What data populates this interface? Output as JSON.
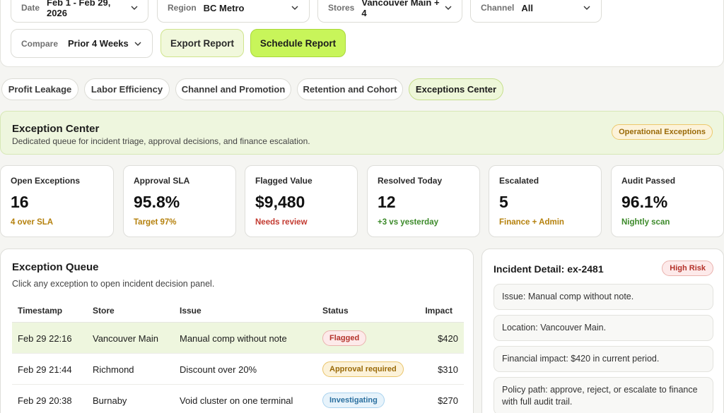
{
  "filters": {
    "date": {
      "label": "Date",
      "value": "Feb 1 - Feb 29, 2026"
    },
    "region": {
      "label": "Region",
      "value": "BC Metro"
    },
    "stores": {
      "label": "Stores",
      "value": "Vancouver Main + 4"
    },
    "channel": {
      "label": "Channel",
      "value": "All"
    },
    "compare": {
      "label": "Compare",
      "value": "Prior 4 Weeks"
    }
  },
  "actions": {
    "export_label": "Export Report",
    "schedule_label": "Schedule Report"
  },
  "tabs": [
    {
      "label": "Profit Leakage",
      "active": false
    },
    {
      "label": "Labor Efficiency",
      "active": false
    },
    {
      "label": "Channel and Promotion",
      "active": false
    },
    {
      "label": "Retention and Cohort",
      "active": false
    },
    {
      "label": "Exceptions Center",
      "active": true
    }
  ],
  "banner": {
    "title": "Exception Center",
    "subtitle": "Dedicated queue for incident triage, approval decisions, and finance escalation.",
    "badge": "Operational Exceptions"
  },
  "kpis": [
    {
      "label": "Open Exceptions",
      "value": "16",
      "note": "4 over SLA",
      "note_color": "#b5810d"
    },
    {
      "label": "Approval SLA",
      "value": "95.8%",
      "note": "Target 97%",
      "note_color": "#b5810d"
    },
    {
      "label": "Flagged Value",
      "value": "$9,480",
      "note": "Needs review",
      "note_color": "#c33a30"
    },
    {
      "label": "Resolved Today",
      "value": "12",
      "note": "+3 vs yesterday",
      "note_color": "#3c8a2a"
    },
    {
      "label": "Escalated",
      "value": "5",
      "note": "Finance + Admin",
      "note_color": "#b5810d"
    },
    {
      "label": "Audit Passed",
      "value": "96.1%",
      "note": "Nightly scan",
      "note_color": "#3c8a2a"
    }
  ],
  "queue": {
    "title": "Exception Queue",
    "subtitle": "Click any exception to open incident decision panel.",
    "columns": [
      "Timestamp",
      "Store",
      "Issue",
      "Status",
      "Impact"
    ],
    "rows": [
      {
        "timestamp": "Feb 29 22:16",
        "store": "Vancouver Main",
        "issue": "Manual comp without note",
        "status": "Flagged",
        "impact": "$420",
        "selected": true
      },
      {
        "timestamp": "Feb 29 21:44",
        "store": "Richmond",
        "issue": "Discount over 20%",
        "status": "Approval required",
        "impact": "$310",
        "selected": false
      },
      {
        "timestamp": "Feb 29 20:38",
        "store": "Burnaby",
        "issue": "Void cluster on one terminal",
        "status": "Investigating",
        "impact": "$270",
        "selected": false
      }
    ]
  },
  "incident": {
    "title": "Incident Detail: ex-2481",
    "risk_badge": "High Risk",
    "details": [
      "Issue: Manual comp without note.",
      "Location: Vancouver Main.",
      "Financial impact: $420 in current period.",
      "Policy path: approve, reject, or escalate to finance with full audit trail."
    ]
  }
}
